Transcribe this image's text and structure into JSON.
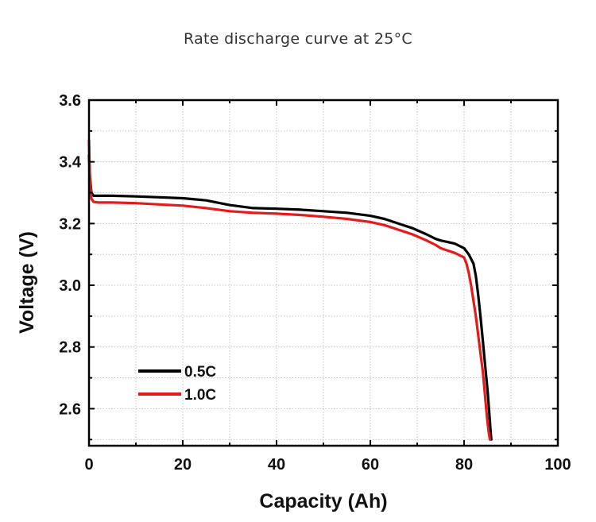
{
  "page": {
    "title": "Rate discharge curve at 25°C"
  },
  "chart_data": {
    "type": "line",
    "title": "Rate discharge curve at 25°C",
    "xlabel": "Capacity (Ah)",
    "ylabel": "Voltage (V)",
    "xlim": [
      0,
      100
    ],
    "ylim": [
      2.48,
      3.6
    ],
    "xticks": [
      0,
      20,
      40,
      60,
      80,
      100
    ],
    "xtick_labels": [
      "0",
      "20",
      "40",
      "60",
      "80",
      "100"
    ],
    "yticks": [
      2.6,
      2.8,
      3.0,
      3.2,
      3.4,
      3.6
    ],
    "ytick_labels": [
      "2.6",
      "2.8",
      "3.0",
      "3.2",
      "3.4",
      "3.6"
    ],
    "grid": true,
    "legend_position": "lower-left",
    "series": [
      {
        "name": "0.5C",
        "color": "#000000",
        "x": [
          0,
          0.2,
          0.5,
          1,
          2,
          5,
          10,
          15,
          20,
          25,
          30,
          35,
          40,
          45,
          50,
          55,
          60,
          63,
          66,
          69,
          72,
          74,
          75,
          76,
          78,
          80,
          81,
          82,
          82.5,
          83,
          83.5,
          84,
          84.5,
          85,
          85.3,
          85.6,
          85.8
        ],
        "y": [
          3.42,
          3.35,
          3.3,
          3.29,
          3.29,
          3.29,
          3.288,
          3.285,
          3.282,
          3.275,
          3.26,
          3.25,
          3.248,
          3.245,
          3.24,
          3.235,
          3.225,
          3.215,
          3.2,
          3.185,
          3.165,
          3.15,
          3.145,
          3.142,
          3.135,
          3.12,
          3.1,
          3.07,
          3.03,
          2.97,
          2.9,
          2.82,
          2.74,
          2.66,
          2.6,
          2.54,
          2.5
        ]
      },
      {
        "name": "1.0C",
        "color": "#e61a1a",
        "x": [
          0,
          0.2,
          0.5,
          1,
          2,
          5,
          10,
          15,
          20,
          25,
          30,
          35,
          40,
          45,
          50,
          55,
          60,
          63,
          66,
          69,
          72,
          74,
          75,
          76,
          78,
          80,
          80.5,
          81,
          81.5,
          82,
          82.5,
          83,
          83.5,
          84,
          84.3,
          84.6,
          84.9,
          85.2,
          85.5
        ],
        "y": [
          3.47,
          3.34,
          3.28,
          3.27,
          3.268,
          3.268,
          3.266,
          3.262,
          3.258,
          3.25,
          3.24,
          3.235,
          3.232,
          3.228,
          3.222,
          3.215,
          3.205,
          3.195,
          3.18,
          3.165,
          3.145,
          3.13,
          3.12,
          3.115,
          3.105,
          3.09,
          3.07,
          3.04,
          3.0,
          2.95,
          2.9,
          2.84,
          2.78,
          2.72,
          2.67,
          2.62,
          2.57,
          2.53,
          2.5
        ]
      }
    ]
  }
}
